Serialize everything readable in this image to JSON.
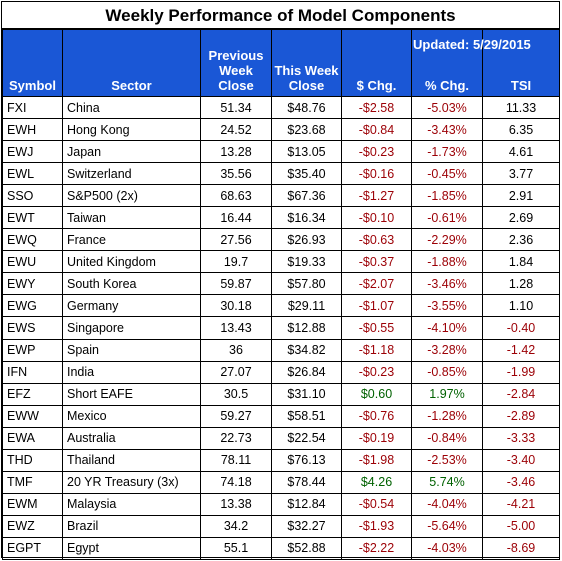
{
  "title": "Weekly Performance of Model Components",
  "updated": "Updated:  5/29/2015",
  "headers": {
    "symbol": "Symbol",
    "sector": "Sector",
    "prev": [
      "Previous",
      "Week",
      "Close"
    ],
    "this": [
      "This Week",
      "Close"
    ],
    "chg": "$ Chg.",
    "pct": "% Chg.",
    "tsi": "TSI"
  },
  "rows": [
    {
      "symbol": "FXI",
      "sector": "China",
      "prev": "51.34",
      "this": "$48.76",
      "chg": "-$2.58",
      "pct": "-5.03%",
      "tsi": "11.33"
    },
    {
      "symbol": "EWH",
      "sector": "Hong Kong",
      "prev": "24.52",
      "this": "$23.68",
      "chg": "-$0.84",
      "pct": "-3.43%",
      "tsi": "6.35"
    },
    {
      "symbol": "EWJ",
      "sector": "Japan",
      "prev": "13.28",
      "this": "$13.05",
      "chg": "-$0.23",
      "pct": "-1.73%",
      "tsi": "4.61"
    },
    {
      "symbol": "EWL",
      "sector": "Switzerland",
      "prev": "35.56",
      "this": "$35.40",
      "chg": "-$0.16",
      "pct": "-0.45%",
      "tsi": "3.77"
    },
    {
      "symbol": "SSO",
      "sector": "S&P500 (2x)",
      "prev": "68.63",
      "this": "$67.36",
      "chg": "-$1.27",
      "pct": "-1.85%",
      "tsi": "2.91"
    },
    {
      "symbol": "EWT",
      "sector": "Taiwan",
      "prev": "16.44",
      "this": "$16.34",
      "chg": "-$0.10",
      "pct": "-0.61%",
      "tsi": "2.69"
    },
    {
      "symbol": "EWQ",
      "sector": "France",
      "prev": "27.56",
      "this": "$26.93",
      "chg": "-$0.63",
      "pct": "-2.29%",
      "tsi": "2.36"
    },
    {
      "symbol": "EWU",
      "sector": "United Kingdom",
      "prev": "19.7",
      "this": "$19.33",
      "chg": "-$0.37",
      "pct": "-1.88%",
      "tsi": "1.84"
    },
    {
      "symbol": "EWY",
      "sector": "South Korea",
      "prev": "59.87",
      "this": "$57.80",
      "chg": "-$2.07",
      "pct": "-3.46%",
      "tsi": "1.28"
    },
    {
      "symbol": "EWG",
      "sector": "Germany",
      "prev": "30.18",
      "this": "$29.11",
      "chg": "-$1.07",
      "pct": "-3.55%",
      "tsi": "1.10"
    },
    {
      "symbol": "EWS",
      "sector": "Singapore",
      "prev": "13.43",
      "this": "$12.88",
      "chg": "-$0.55",
      "pct": "-4.10%",
      "tsi": "-0.40"
    },
    {
      "symbol": "EWP",
      "sector": "Spain",
      "prev": "36",
      "this": "$34.82",
      "chg": "-$1.18",
      "pct": "-3.28%",
      "tsi": "-1.42"
    },
    {
      "symbol": "IFN",
      "sector": "India",
      "prev": "27.07",
      "this": "$26.84",
      "chg": "-$0.23",
      "pct": "-0.85%",
      "tsi": "-1.99"
    },
    {
      "symbol": "EFZ",
      "sector": "Short EAFE",
      "prev": "30.5",
      "this": "$31.10",
      "chg": "$0.60",
      "pct": "1.97%",
      "tsi": "-2.84"
    },
    {
      "symbol": "EWW",
      "sector": "Mexico",
      "prev": "59.27",
      "this": "$58.51",
      "chg": "-$0.76",
      "pct": "-1.28%",
      "tsi": "-2.89"
    },
    {
      "symbol": "EWA",
      "sector": "Australia",
      "prev": "22.73",
      "this": "$22.54",
      "chg": "-$0.19",
      "pct": "-0.84%",
      "tsi": "-3.33"
    },
    {
      "symbol": "THD",
      "sector": "Thailand",
      "prev": "78.11",
      "this": "$76.13",
      "chg": "-$1.98",
      "pct": "-2.53%",
      "tsi": "-3.40"
    },
    {
      "symbol": "TMF",
      "sector": "20 YR Treasury  (3x)",
      "prev": "74.18",
      "this": "$78.44",
      "chg": "$4.26",
      "pct": "5.74%",
      "tsi": "-3.46"
    },
    {
      "symbol": "EWM",
      "sector": "Malaysia",
      "prev": "13.38",
      "this": "$12.84",
      "chg": "-$0.54",
      "pct": "-4.04%",
      "tsi": "-4.21"
    },
    {
      "symbol": "EWZ",
      "sector": "Brazil",
      "prev": "34.2",
      "this": "$32.27",
      "chg": "-$1.93",
      "pct": "-5.64%",
      "tsi": "-5.00"
    },
    {
      "symbol": "EGPT",
      "sector": "Egypt",
      "prev": "55.1",
      "this": "$52.88",
      "chg": "-$2.22",
      "pct": "-4.03%",
      "tsi": "-8.69"
    }
  ],
  "colors": {
    "header_bg": "#1a57d6",
    "header_text": "#ffffff",
    "negative": "#9c0006",
    "positive": "#006100"
  }
}
